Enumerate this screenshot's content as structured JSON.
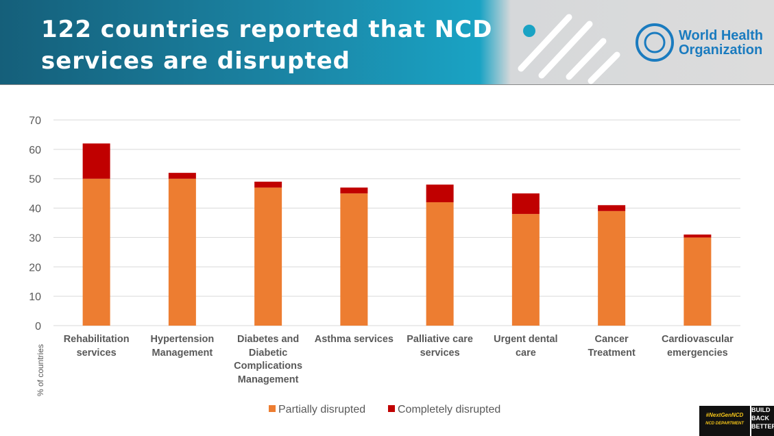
{
  "header": {
    "title": "122 countries reported that NCD services are disrupted",
    "logo": "World Health Organization"
  },
  "chart_data": {
    "type": "stacked_bar",
    "categories": [
      "Rehabilitation services",
      "Hypertension Management",
      "Diabetes and Diabetic Complications Management",
      "Asthma services",
      "Palliative care services",
      "Urgent dental care",
      "Cancer Treatment",
      "Cardiovascular emergencies"
    ],
    "series": [
      {
        "name": "Partially disrupted",
        "color": "#ed7d31",
        "values": [
          50,
          50,
          47,
          45,
          42,
          38,
          39,
          30
        ]
      },
      {
        "name": "Completely disrupted",
        "color": "#c00000",
        "values": [
          12,
          2,
          2,
          2,
          6,
          7,
          2,
          1
        ]
      }
    ],
    "ylabel": "% of countries",
    "ylim": [
      0,
      70
    ],
    "yticks": [
      0,
      10,
      20,
      30,
      40,
      50,
      60,
      70
    ],
    "grid": true
  },
  "badge": {
    "tag": "#NextGenNCD",
    "dept": "NCD DEPARTMENT",
    "slogan": "BUILD BACK BETTER"
  }
}
